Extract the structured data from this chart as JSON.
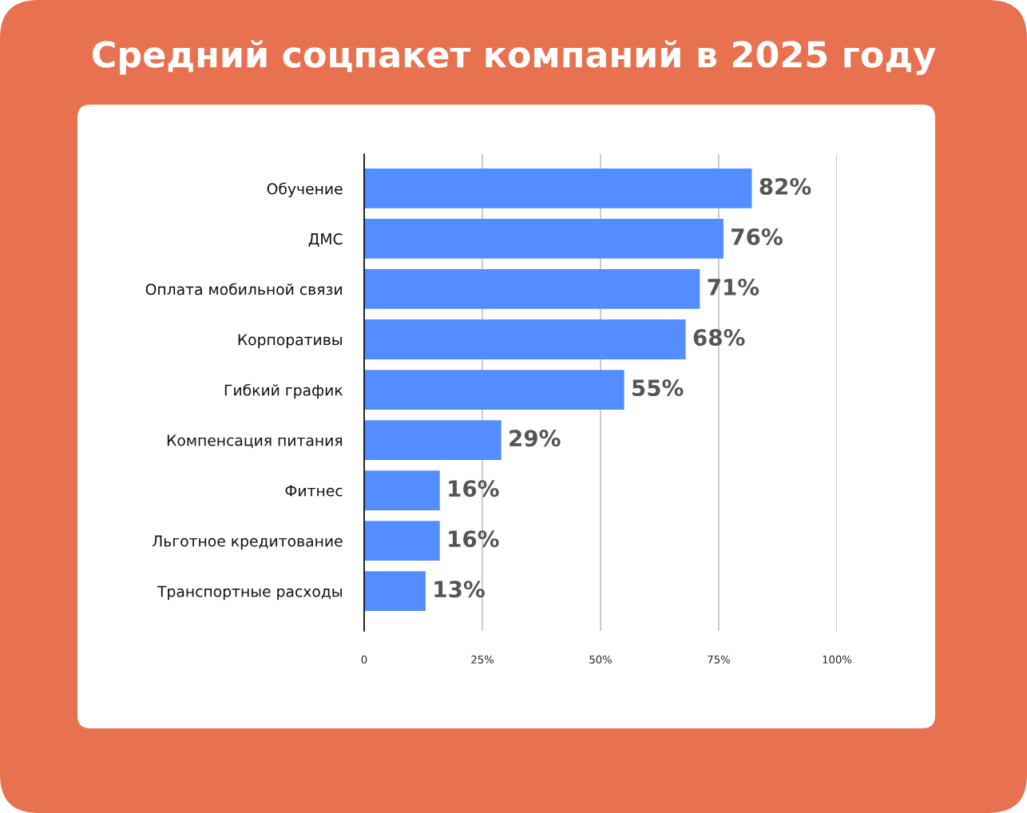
{
  "chart_data": {
    "type": "bar",
    "orientation": "horizontal",
    "title": "Средний соцпакет компаний в 2025 году",
    "categories": [
      "Обучение",
      "ДМС",
      "Оплата мобильной связи",
      "Корпоративы",
      "Гибкий график",
      "Компенсация питания",
      "Фитнес",
      "Льготное кредитование",
      "Транспортные расходы"
    ],
    "values": [
      82,
      76,
      71,
      68,
      55,
      29,
      16,
      16,
      13
    ],
    "value_labels": [
      "82%",
      "76%",
      "71%",
      "68%",
      "55%",
      "29%",
      "16%",
      "16%",
      "13%"
    ],
    "color": "#548dff",
    "xlim": [
      0,
      100
    ],
    "xticks": [
      0,
      {
        "value": 25,
        "label": "25%"
      },
      {
        "value": 50,
        "label": "50%"
      },
      {
        "value": 75,
        "label": "75%"
      },
      {
        "value": 100,
        "label": "100%"
      }
    ],
    "grid": "x"
  }
}
